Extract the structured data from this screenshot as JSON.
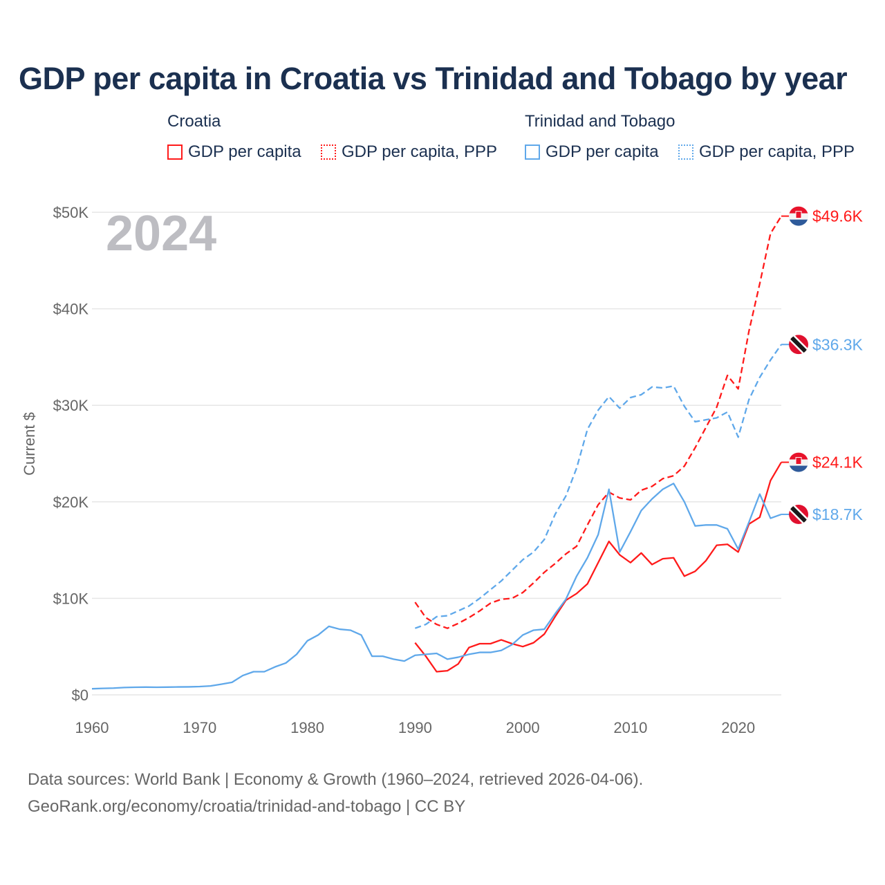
{
  "title": "GDP per capita in Croatia vs Trinidad and Tobago by year",
  "legend": {
    "groups": [
      {
        "name": "Croatia",
        "items": [
          "GDP per capita",
          "GDP per capita, PPP"
        ]
      },
      {
        "name": "Trinidad and Tobago",
        "items": [
          "GDP per capita",
          "GDP per capita, PPP"
        ]
      }
    ]
  },
  "year_watermark": "2024",
  "source": {
    "line1": "Data sources: World Bank | Economy & Growth (1960–2024, retrieved 2026-04-06).",
    "line2": "GeoRank.org/economy/croatia/trinidad-and-tobago | CC BY"
  },
  "colors": {
    "croatia": "#ff1a1a",
    "trinidad": "#5fa8ea",
    "grid": "#e6e6e6",
    "title": "#1b3050"
  },
  "chart_data": {
    "type": "line",
    "title": "GDP per capita in Croatia vs Trinidad and Tobago by year",
    "xlabel": "",
    "ylabel": "Current $",
    "xlim": [
      1960,
      2024
    ],
    "ylim": [
      0,
      50000
    ],
    "xticks": [
      1960,
      1970,
      1980,
      1990,
      2000,
      2010,
      2020
    ],
    "xtick_labels": [
      "1960",
      "1970",
      "1980",
      "1990",
      "2000",
      "2010",
      "2020"
    ],
    "yticks": [
      0,
      10000,
      20000,
      30000,
      40000,
      50000
    ],
    "ytick_labels": [
      "$0",
      "$10K",
      "$20K",
      "$30K",
      "$40K",
      "$50K"
    ],
    "grid": true,
    "legend_position": "top",
    "series": [
      {
        "name": "Croatia GDP per capita",
        "country": "croatia",
        "dash": "solid",
        "end_label": "$24.1K",
        "start_year": 1990,
        "values": [
          5.4,
          4.0,
          2.4,
          2.5,
          3.2,
          4.9,
          5.3,
          5.3,
          5.7,
          5.3,
          5.0,
          5.4,
          6.3,
          8.1,
          9.8,
          10.5,
          11.5,
          13.7,
          15.9,
          14.5,
          13.7,
          14.7,
          13.5,
          14.1,
          14.2,
          12.3,
          12.8,
          13.9,
          15.5,
          15.6,
          14.8,
          17.7,
          18.4,
          22.2,
          24.1
        ]
      },
      {
        "name": "Croatia GDP per capita, PPP",
        "country": "croatia",
        "dash": "dashed",
        "end_label": "$49.6K",
        "start_year": 1990,
        "values": [
          9.6,
          8.0,
          7.3,
          6.9,
          7.4,
          8.0,
          8.7,
          9.5,
          9.9,
          10.0,
          10.6,
          11.6,
          12.7,
          13.6,
          14.6,
          15.4,
          17.6,
          19.7,
          21.0,
          20.4,
          20.2,
          21.2,
          21.6,
          22.4,
          22.7,
          23.7,
          25.6,
          27.7,
          29.8,
          33.1,
          31.7,
          37.7,
          42.6,
          47.8,
          49.6
        ]
      },
      {
        "name": "Trinidad and Tobago GDP per capita",
        "country": "trinidad",
        "dash": "solid",
        "end_label": "$18.7K",
        "start_year": 1960,
        "values": [
          0.63,
          0.67,
          0.7,
          0.76,
          0.79,
          0.8,
          0.79,
          0.8,
          0.82,
          0.83,
          0.86,
          0.92,
          1.1,
          1.3,
          2.0,
          2.4,
          2.4,
          2.9,
          3.3,
          4.2,
          5.6,
          6.2,
          7.1,
          6.8,
          6.7,
          6.2,
          4.0,
          4.0,
          3.7,
          3.5,
          4.1,
          4.2,
          4.3,
          3.7,
          3.9,
          4.2,
          4.4,
          4.4,
          4.6,
          5.2,
          6.2,
          6.7,
          6.8,
          8.4,
          9.9,
          12.3,
          14.2,
          16.6,
          21.3,
          14.8,
          16.9,
          19.1,
          20.3,
          21.3,
          21.9,
          20.0,
          17.5,
          17.6,
          17.6,
          17.2,
          15.1,
          17.9,
          20.8,
          18.3,
          18.7
        ]
      },
      {
        "name": "Trinidad and Tobago GDP per capita, PPP",
        "country": "trinidad",
        "dash": "dashed",
        "end_label": "$36.3K",
        "start_year": 1990,
        "values": [
          6.9,
          7.3,
          8.1,
          8.2,
          8.7,
          9.2,
          10.0,
          10.9,
          11.8,
          12.9,
          14.0,
          14.8,
          16.1,
          18.7,
          20.6,
          23.5,
          27.5,
          29.5,
          30.9,
          29.7,
          30.8,
          31.1,
          31.9,
          31.8,
          32.0,
          29.9,
          28.3,
          28.5,
          28.7,
          29.3,
          26.7,
          30.6,
          32.9,
          34.7,
          36.3
        ]
      }
    ],
    "value_unit": "thousand USD"
  }
}
